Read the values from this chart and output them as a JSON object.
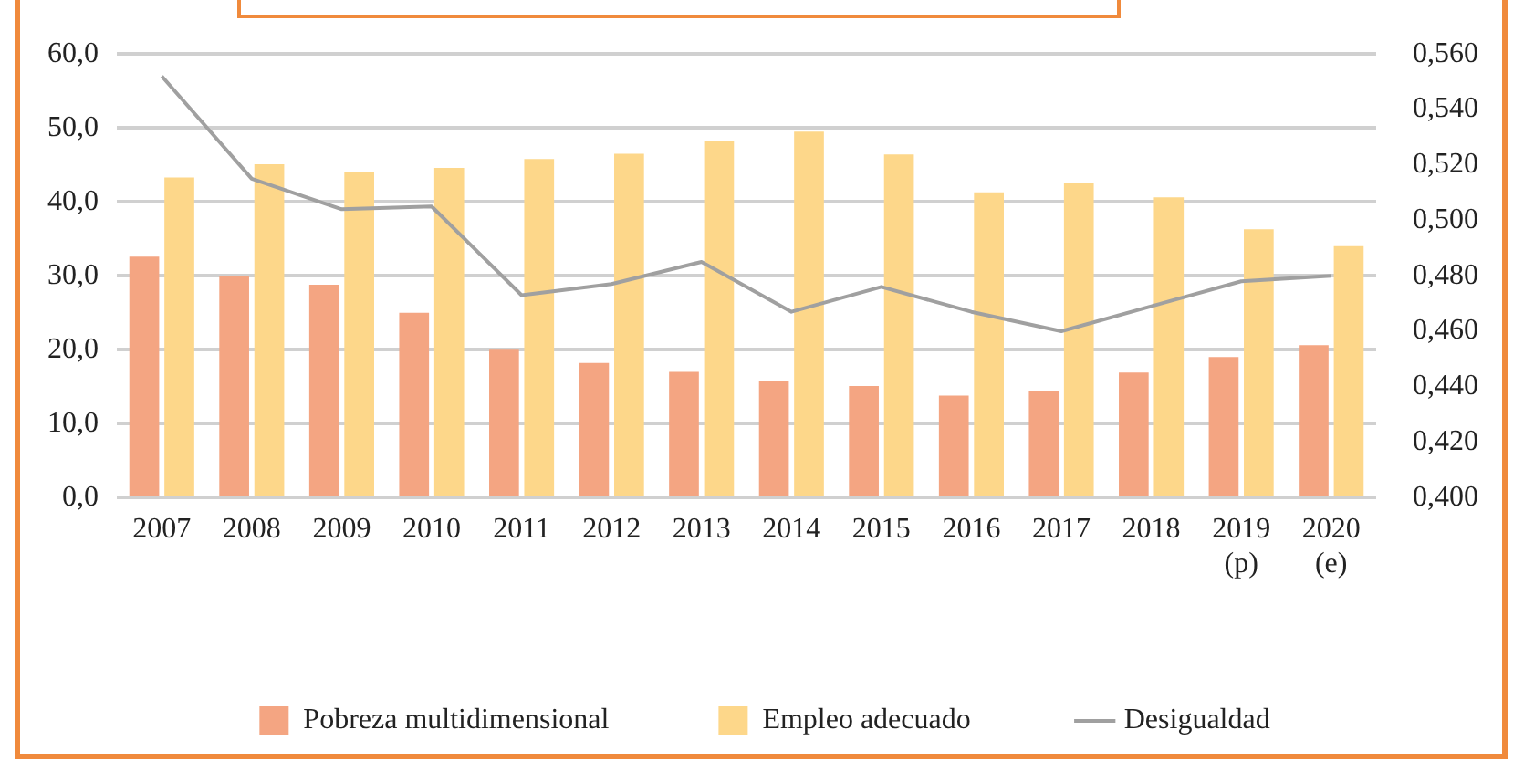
{
  "chart_data": {
    "type": "bar",
    "categories": [
      "2007",
      "2008",
      "2009",
      "2010",
      "2011",
      "2012",
      "2013",
      "2014",
      "2015",
      "2016",
      "2017",
      "2018",
      "2019\n(p)",
      "2020\n(e)"
    ],
    "series": [
      {
        "name": "Pobreza multidimensional",
        "color": "#f4a582",
        "values": [
          32.6,
          30.0,
          28.8,
          25.0,
          20.0,
          18.2,
          17.0,
          15.7,
          15.1,
          13.8,
          14.4,
          16.9,
          19.0,
          20.6
        ]
      },
      {
        "name": "Empleo adecuado",
        "color": "#fdd78a",
        "values": [
          43.3,
          45.1,
          44.0,
          44.6,
          45.8,
          46.5,
          48.2,
          49.5,
          46.4,
          41.3,
          42.6,
          40.6,
          36.3,
          34.0
        ]
      },
      {
        "name": "Desigualdad",
        "type": "line",
        "axis": "y2",
        "color": "#a0a0a0",
        "values": [
          0.552,
          0.515,
          0.504,
          0.505,
          0.473,
          0.477,
          0.485,
          0.467,
          0.476,
          0.467,
          0.46,
          0.469,
          0.478,
          0.48
        ]
      }
    ],
    "ylim": [
      0,
      60
    ],
    "yticks": [
      {
        "value": 0,
        "label": "0,0"
      },
      {
        "value": 10,
        "label": "10,0"
      },
      {
        "value": 20,
        "label": "20,0"
      },
      {
        "value": 30,
        "label": "30,0"
      },
      {
        "value": 40,
        "label": "40,0"
      },
      {
        "value": 50,
        "label": "50,0"
      },
      {
        "value": 60,
        "label": "60,0"
      }
    ],
    "y2lim": [
      0.4,
      0.56
    ],
    "y2ticks": [
      {
        "value": 0.4,
        "label": "0,400"
      },
      {
        "value": 0.42,
        "label": "0,420"
      },
      {
        "value": 0.44,
        "label": "0,440"
      },
      {
        "value": 0.46,
        "label": "0,460"
      },
      {
        "value": 0.48,
        "label": "0,480"
      },
      {
        "value": 0.5,
        "label": "0,500"
      },
      {
        "value": 0.52,
        "label": "0,520"
      },
      {
        "value": 0.54,
        "label": "0,540"
      },
      {
        "value": 0.56,
        "label": "0,560"
      }
    ],
    "grid": "y",
    "legend": "bottom",
    "marker": "none",
    "line_style": "solid"
  }
}
